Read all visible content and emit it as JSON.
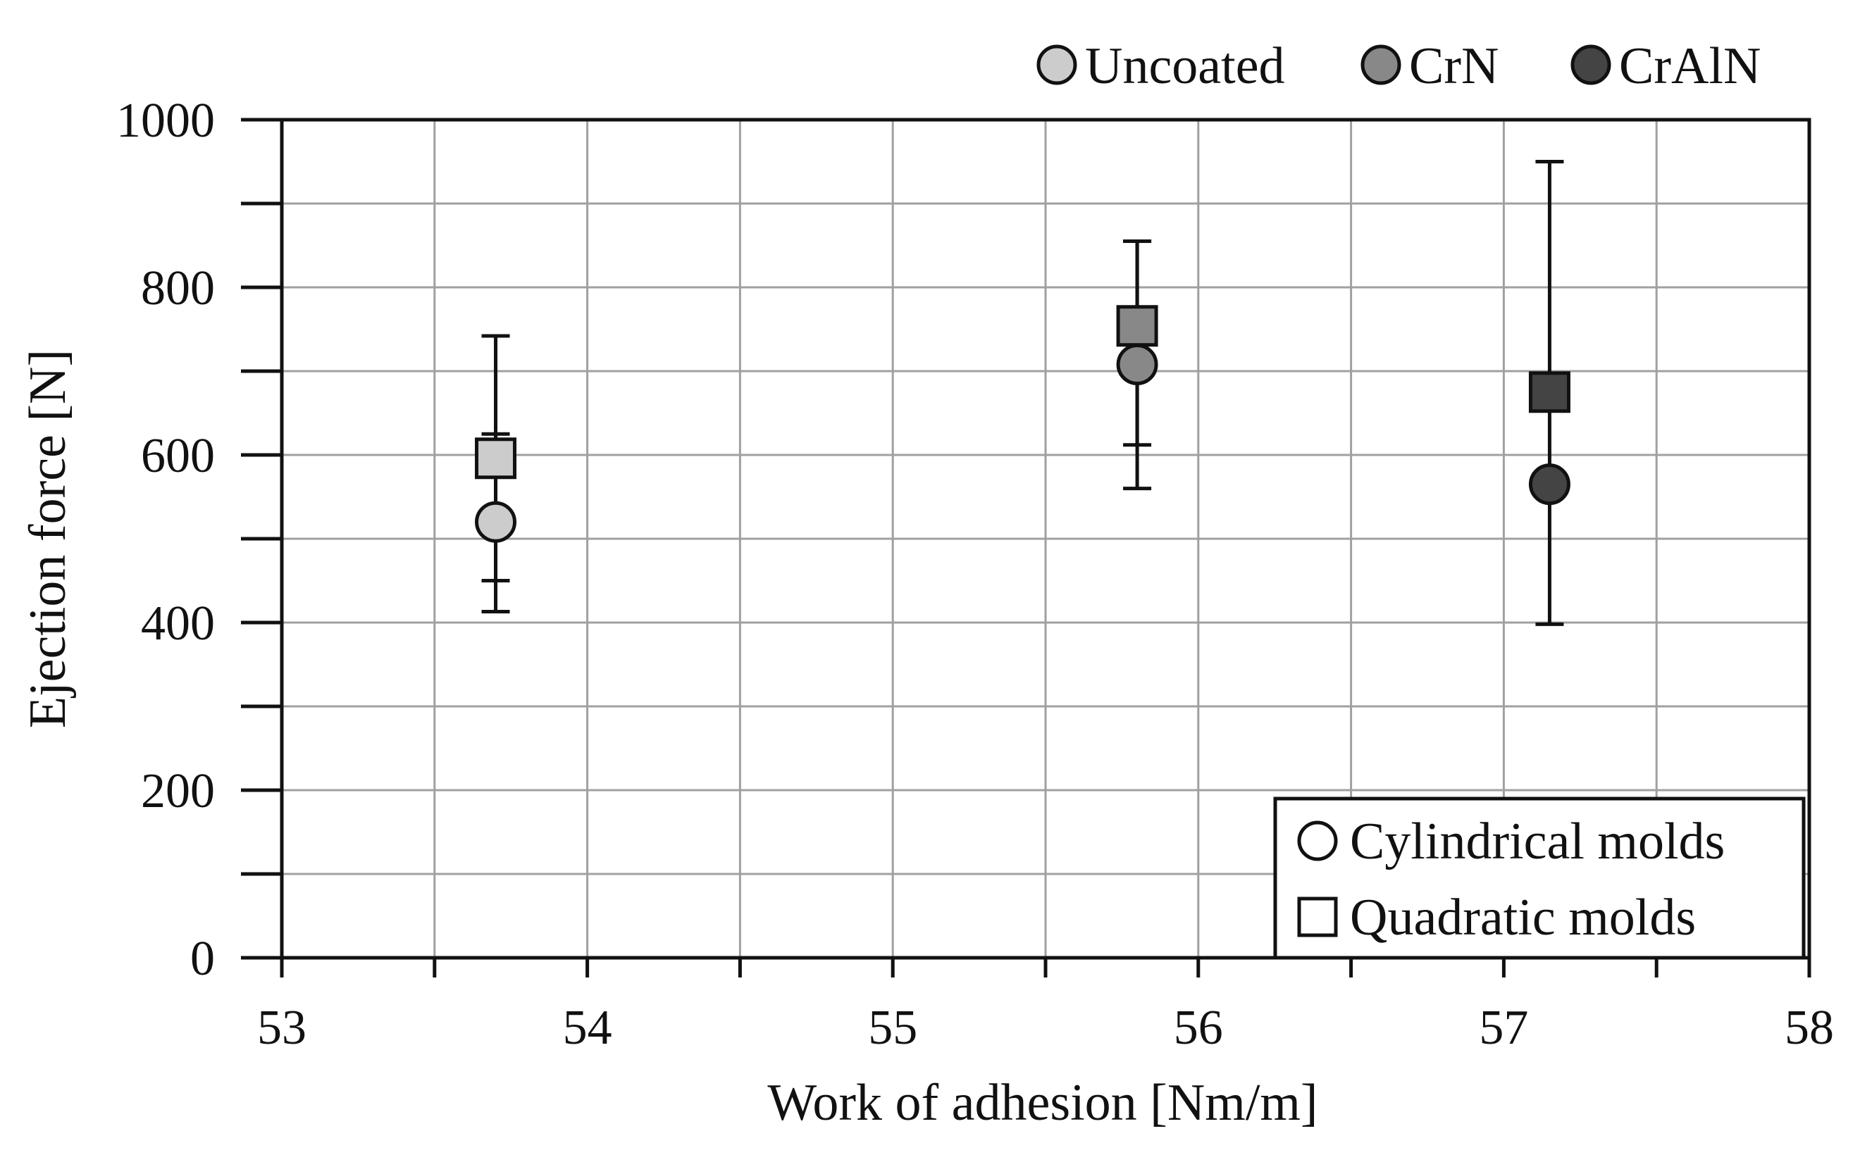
{
  "chart_data": {
    "type": "scatter",
    "title": "",
    "xlabel": "Work of adhesion [Nm/m]",
    "ylabel": "Ejection force [N]",
    "xlim": [
      53,
      58
    ],
    "ylim": [
      0,
      1000
    ],
    "x_ticks": [
      53,
      54,
      55,
      56,
      57,
      58
    ],
    "y_ticks": [
      0,
      200,
      400,
      600,
      800,
      1000
    ],
    "x_minor_step": 0.5,
    "y_minor_step": 100,
    "grid": true,
    "coating_legend": {
      "placement": "top-right, above plot",
      "items": [
        {
          "label": "Uncoated",
          "color": "#cccccc"
        },
        {
          "label": "CrN",
          "color": "#888888"
        },
        {
          "label": "CrAlN",
          "color": "#444444"
        }
      ]
    },
    "shape_legend": {
      "placement": "bottom-right, inside plot",
      "items": [
        {
          "label": "Cylindrical molds",
          "marker": "circle"
        },
        {
          "label": "Quadratic molds",
          "marker": "square"
        }
      ]
    },
    "series": [
      {
        "name": "Cylindrical molds",
        "marker": "circle",
        "points": [
          {
            "coating": "Uncoated",
            "x": 53.7,
            "y": 520,
            "err_low": 450,
            "err_high": 625,
            "color": "#cccccc"
          },
          {
            "coating": "CrN",
            "x": 55.8,
            "y": 708,
            "err_low": 612,
            "err_high": 855,
            "color": "#888888"
          },
          {
            "coating": "CrAlN",
            "x": 57.15,
            "y": 565,
            "err_low": 565,
            "err_high": 565,
            "color": "#444444"
          }
        ]
      },
      {
        "name": "Quadratic molds",
        "marker": "square",
        "points": [
          {
            "coating": "Uncoated",
            "x": 53.7,
            "y": 596,
            "err_low": 413,
            "err_high": 742,
            "color": "#cccccc"
          },
          {
            "coating": "CrN",
            "x": 55.8,
            "y": 754,
            "err_low": 560,
            "err_high": 855,
            "color": "#888888"
          },
          {
            "coating": "CrAlN",
            "x": 57.15,
            "y": 675,
            "err_low": 398,
            "err_high": 950,
            "color": "#444444"
          }
        ]
      }
    ]
  }
}
